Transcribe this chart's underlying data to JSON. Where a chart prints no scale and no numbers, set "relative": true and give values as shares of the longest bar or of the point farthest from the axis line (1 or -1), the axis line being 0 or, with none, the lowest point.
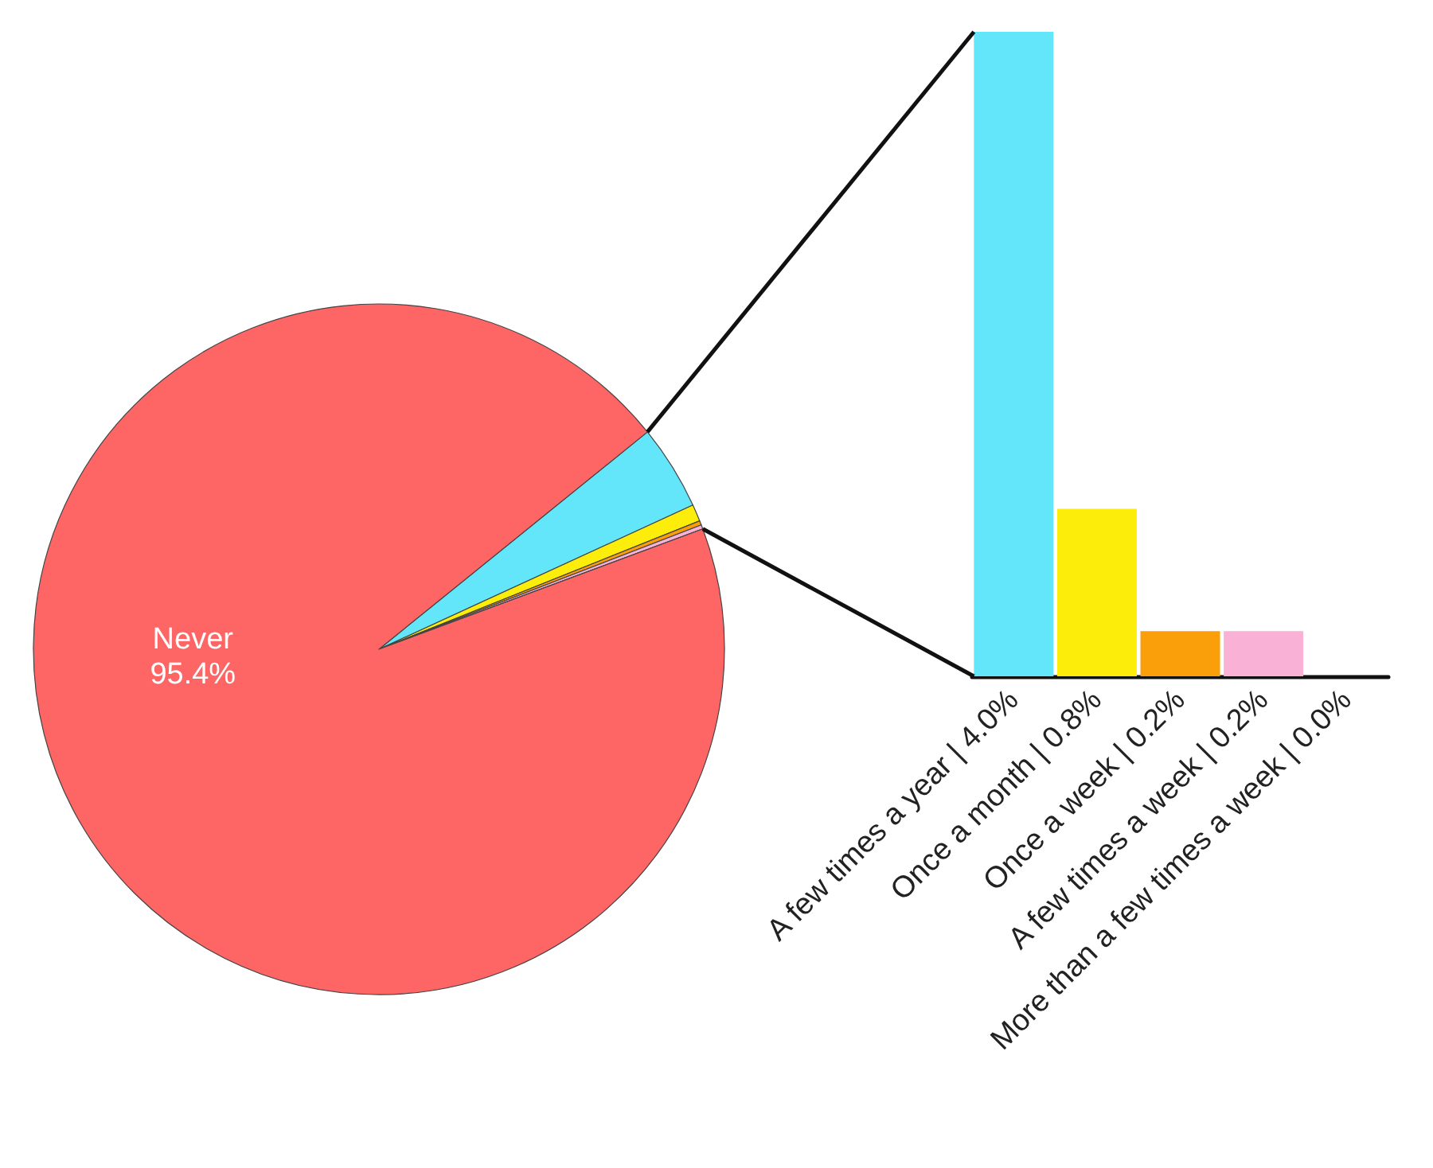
{
  "chart_data": [
    {
      "type": "pie",
      "categories": [
        null,
        null,
        null,
        null,
        null,
        "Never"
      ],
      "values": [
        4.0,
        0.8,
        0.2,
        0.2,
        0.0,
        95.4
      ],
      "colors": [
        "#63e5fa",
        "#fcee0a",
        "#fa9e0a",
        "#f9b1d5",
        "#8a6a9a",
        "#fe6565"
      ],
      "value_labels": [
        null,
        null,
        null,
        null,
        null,
        "95.4%"
      ]
    },
    {
      "type": "bar",
      "relative": true,
      "categories": [
        "A few times a year | 4.0%",
        "Once a month | 0.8%",
        "Once a week | 0.2%",
        "A few times a week | 0.2%",
        "More than a few times a week | 0.0%"
      ],
      "values": [
        1,
        0.26,
        0.07,
        0.07,
        0
      ],
      "colors": [
        "#63e5fa",
        "#fcee0a",
        "#fa9e0a",
        "#f9b1d5",
        "#8a6a9a"
      ]
    }
  ]
}
